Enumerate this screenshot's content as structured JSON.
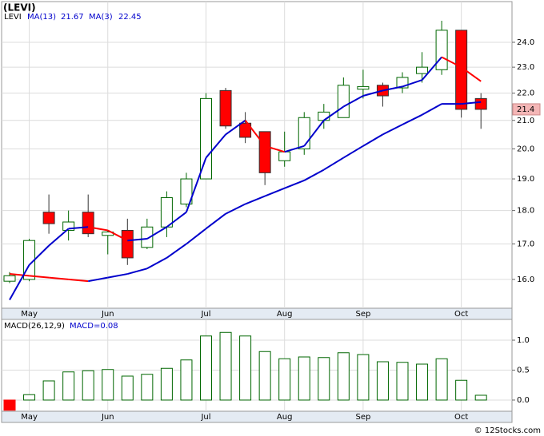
{
  "chart_data": [
    {
      "type": "candlestick",
      "title": "(LEVI)",
      "symbol": "LEVI",
      "log_scale": true,
      "grid": true,
      "up_color": "#006600",
      "down_color": "#ff0000",
      "categories": [
        null,
        "May",
        null,
        null,
        null,
        "Jun",
        null,
        null,
        null,
        null,
        "Jul",
        null,
        null,
        null,
        "Aug",
        null,
        null,
        null,
        "Sep",
        null,
        null,
        null,
        null,
        "Oct",
        null
      ],
      "open": [
        15.95,
        16.0,
        17.95,
        17.4,
        17.95,
        17.25,
        17.4,
        16.9,
        17.5,
        18.2,
        19.0,
        22.1,
        20.9,
        20.6,
        19.6,
        20.0,
        21.0,
        21.1,
        22.15,
        22.3,
        22.2,
        22.75,
        22.9,
        24.5,
        21.8
      ],
      "high": [
        16.2,
        17.15,
        18.5,
        18.0,
        18.5,
        17.4,
        17.75,
        17.75,
        18.6,
        19.2,
        22.0,
        22.2,
        21.3,
        20.6,
        20.6,
        21.3,
        21.6,
        22.6,
        22.9,
        22.4,
        22.8,
        23.6,
        24.9,
        24.5,
        22.0
      ],
      "low": [
        15.9,
        15.95,
        17.3,
        17.1,
        17.2,
        16.7,
        16.4,
        16.85,
        17.2,
        18.1,
        19.0,
        20.7,
        20.2,
        18.8,
        19.4,
        19.8,
        20.7,
        21.1,
        21.8,
        21.5,
        22.0,
        22.4,
        22.7,
        21.1,
        20.7
      ],
      "close": [
        16.1,
        17.1,
        17.6,
        17.65,
        17.3,
        17.35,
        16.6,
        17.5,
        18.4,
        19.0,
        21.8,
        20.8,
        20.4,
        19.2,
        19.9,
        21.1,
        21.3,
        22.3,
        22.25,
        21.9,
        22.6,
        23.0,
        24.5,
        21.4,
        21.4
      ],
      "series": [
        {
          "name": "MA(13)",
          "color": "#0000cc",
          "down_color": "#ff0000",
          "last": 21.67,
          "values": [
            16.15,
            16.1,
            16.05,
            16.0,
            15.95,
            16.05,
            16.15,
            16.3,
            16.6,
            17.0,
            17.45,
            17.9,
            18.2,
            18.45,
            18.7,
            18.95,
            19.3,
            19.7,
            20.1,
            20.5,
            20.85,
            21.2,
            21.6,
            21.6,
            21.67
          ]
        },
        {
          "name": "MA(3)",
          "color": "#0000cc",
          "down_color": "#ff0000",
          "last": 22.45,
          "values": [
            15.45,
            16.4,
            16.95,
            17.45,
            17.5,
            17.4,
            17.1,
            17.15,
            17.5,
            17.95,
            19.7,
            20.5,
            21.0,
            20.1,
            19.9,
            20.1,
            21.0,
            21.5,
            21.9,
            22.1,
            22.25,
            22.5,
            23.4,
            23.0,
            22.45
          ]
        }
      ],
      "last_price": 21.4,
      "ylim": [
        15.23,
        25.73
      ],
      "yticks": [
        {
          "value": 16,
          "label": "16.0"
        },
        {
          "value": 17,
          "label": "17.0"
        },
        {
          "value": 18,
          "label": "18.0"
        },
        {
          "value": 19,
          "label": "19.0"
        },
        {
          "value": 20,
          "label": "20.0"
        },
        {
          "value": 21,
          "label": "21.0"
        },
        {
          "value": 22,
          "label": "22.0"
        },
        {
          "value": 23,
          "label": "23.0"
        },
        {
          "value": 24,
          "label": "24.0"
        }
      ]
    },
    {
      "type": "bar",
      "title": "MACD(26,12,9)",
      "value_text": "MACD=0.08",
      "grid": true,
      "color": "#006600",
      "negative_color": "#ff0000",
      "categories": [
        null,
        "May",
        null,
        null,
        null,
        "Jun",
        null,
        null,
        null,
        null,
        "Jul",
        null,
        null,
        null,
        "Aug",
        null,
        null,
        null,
        "Sep",
        null,
        null,
        null,
        null,
        "Oct",
        null
      ],
      "values": [
        -0.17,
        0.09,
        0.32,
        0.47,
        0.49,
        0.51,
        0.4,
        0.43,
        0.53,
        0.67,
        1.07,
        1.13,
        1.07,
        0.81,
        0.69,
        0.72,
        0.71,
        0.79,
        0.76,
        0.64,
        0.63,
        0.6,
        0.69,
        0.33,
        0.08
      ],
      "ylim": [
        -0.187,
        1.347
      ],
      "yticks": [
        {
          "value": 0,
          "label": "0.0"
        },
        0.5,
        {
          "value": 1,
          "label": "1.0"
        }
      ]
    }
  ],
  "watermark": "© 12Stocks.com"
}
